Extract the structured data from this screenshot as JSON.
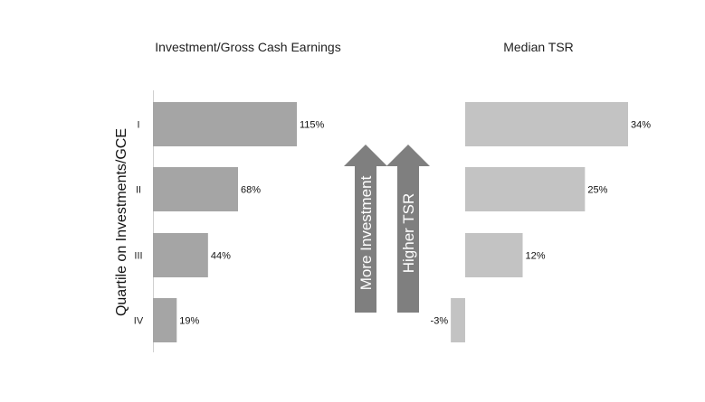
{
  "colors": {
    "left_bars": "#a5a5a5",
    "right_bars": "#c3c3c3",
    "arrows": "#7f7f7f",
    "axis": "#d0d0d0"
  },
  "ylabel": "Quartile on Investments/GCE",
  "arrows": {
    "left": "More Investment",
    "right": "Higher TSR"
  },
  "chart_data": [
    {
      "type": "bar",
      "orientation": "horizontal",
      "title": "Investment/Gross Cash Earnings",
      "categories": [
        "I",
        "II",
        "III",
        "IV"
      ],
      "values": [
        115,
        68,
        44,
        19
      ],
      "value_labels": [
        "115%",
        "68%",
        "44%",
        "19%"
      ],
      "unit": "%",
      "ylabel": "Quartile on Investments/GCE",
      "xlim": [
        0,
        115
      ],
      "grid": false
    },
    {
      "type": "bar",
      "orientation": "horizontal",
      "title": "Median TSR",
      "categories": [
        "I",
        "II",
        "III",
        "IV"
      ],
      "values": [
        34,
        25,
        12,
        -3
      ],
      "value_labels": [
        "34%",
        "25%",
        "12%",
        "-3%"
      ],
      "unit": "%",
      "xlim": [
        -3,
        34
      ],
      "grid": false
    }
  ]
}
